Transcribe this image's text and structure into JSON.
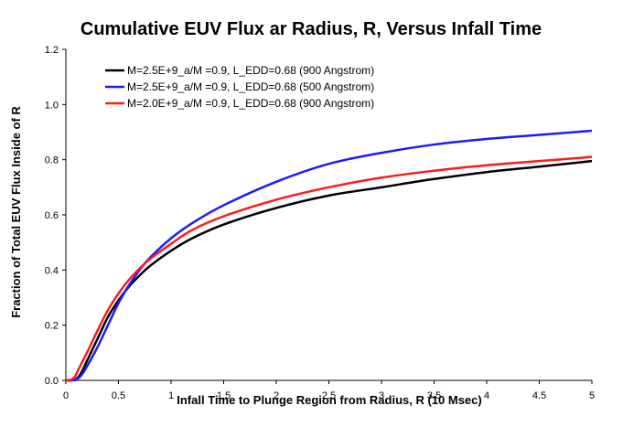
{
  "chart_data": {
    "type": "line",
    "title": "Cumulative EUV Flux ar Radius, R, Versus Infall Time",
    "xlabel": "Infall Time to Plunge Region from Radius, R (10 Msec)",
    "ylabel": "Fraction of Total EUV Flux Inside of R",
    "xlim": [
      0,
      5
    ],
    "ylim": [
      0,
      1.2
    ],
    "x_ticks": [
      "0",
      "0.5",
      "1",
      "1.5",
      "2",
      "2.5",
      "3",
      "3.5",
      "4",
      "4.5",
      "5"
    ],
    "y_ticks": [
      "0.0",
      "0.2",
      "0.4",
      "0.6",
      "0.8",
      "1.0",
      "1.2"
    ],
    "grid": false,
    "legend_position": "top-left",
    "series": [
      {
        "name": "M=2.5E+9_a/M =0.9, L_EDD=0.68 (900 Angstrom)",
        "color": "#000000",
        "x": [
          0.05,
          0.1,
          0.15,
          0.2,
          0.3,
          0.4,
          0.5,
          0.6,
          0.7,
          0.8,
          1.0,
          1.2,
          1.5,
          2.0,
          2.5,
          3.0,
          3.5,
          4.0,
          4.5,
          5.0
        ],
        "y": [
          0.0,
          0.005,
          0.03,
          0.07,
          0.15,
          0.23,
          0.29,
          0.34,
          0.38,
          0.415,
          0.47,
          0.515,
          0.565,
          0.625,
          0.67,
          0.7,
          0.73,
          0.755,
          0.775,
          0.795
        ]
      },
      {
        "name": "M=2.5E+9_a/M =0.9, L_EDD=0.68 (500 Angstrom)",
        "color": "#1a1aff",
        "x": [
          0.05,
          0.1,
          0.15,
          0.2,
          0.3,
          0.4,
          0.5,
          0.6,
          0.7,
          0.8,
          1.0,
          1.2,
          1.5,
          2.0,
          2.5,
          3.0,
          3.5,
          4.0,
          4.5,
          5.0
        ],
        "y": [
          0.0,
          0.003,
          0.02,
          0.05,
          0.12,
          0.2,
          0.28,
          0.345,
          0.4,
          0.445,
          0.515,
          0.57,
          0.635,
          0.72,
          0.785,
          0.825,
          0.855,
          0.875,
          0.89,
          0.905
        ]
      },
      {
        "name": "M=2.0E+9_a/M =0.9, L_EDD=0.68 (900 Angstrom)",
        "color": "#ff1a1a",
        "x": [
          0.03,
          0.08,
          0.12,
          0.2,
          0.3,
          0.4,
          0.5,
          0.6,
          0.7,
          0.8,
          1.0,
          1.2,
          1.5,
          2.0,
          2.5,
          3.0,
          3.5,
          4.0,
          4.5,
          5.0
        ],
        "y": [
          0.0,
          0.01,
          0.04,
          0.1,
          0.18,
          0.255,
          0.315,
          0.365,
          0.405,
          0.44,
          0.495,
          0.545,
          0.595,
          0.655,
          0.7,
          0.735,
          0.76,
          0.78,
          0.795,
          0.81
        ]
      }
    ]
  }
}
